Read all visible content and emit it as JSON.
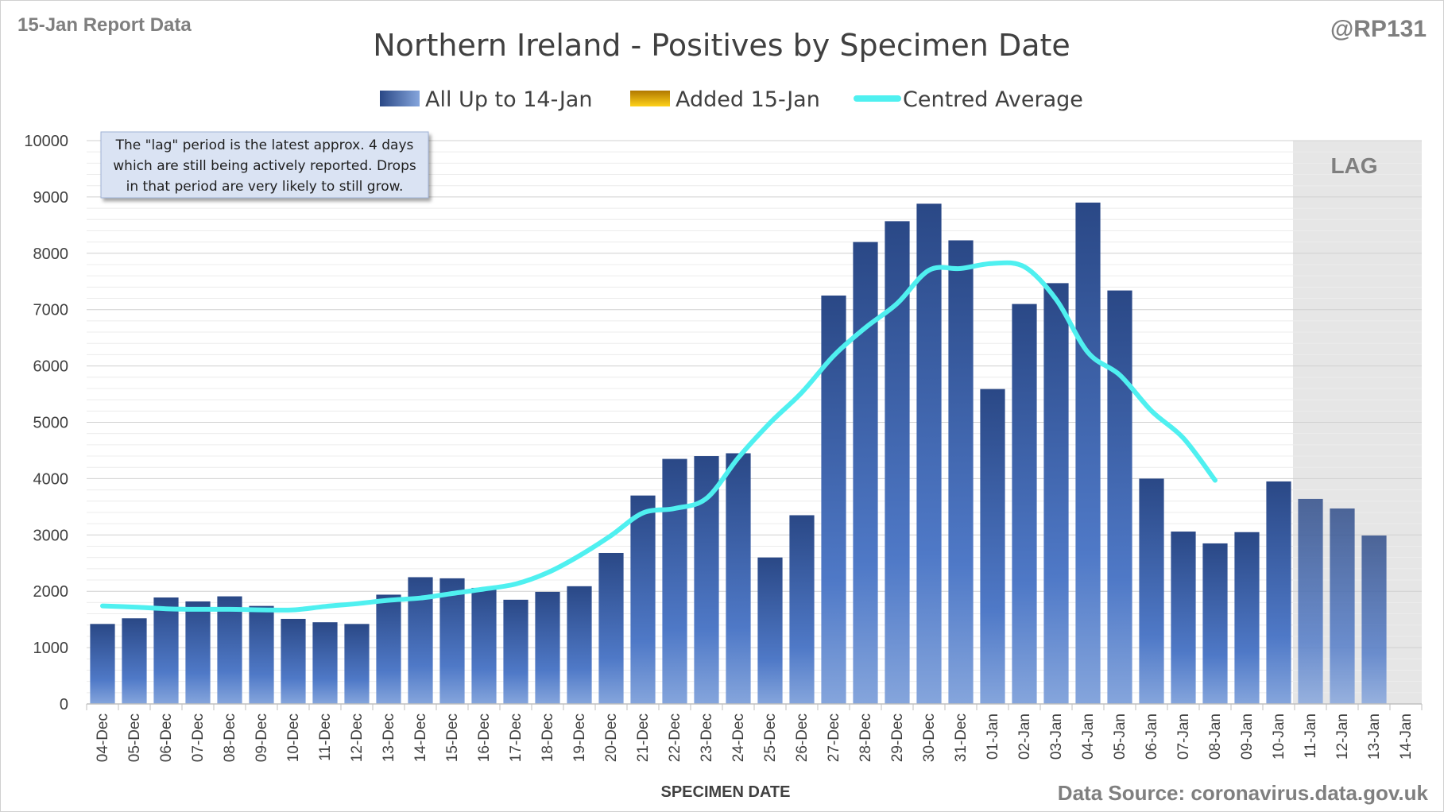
{
  "header": {
    "report_label": "15-Jan Report Data",
    "author": "@RP131",
    "source": "Data Source: coronavirus.data.gov.uk"
  },
  "note": {
    "lines": [
      "The \"lag\" period is the latest approx. 4 days",
      "which are still being actively reported.  Drops",
      "in that period are very likely to still grow."
    ]
  },
  "lag_label": "LAG",
  "colors": {
    "bar_dark": "#2a4886",
    "bar_light": "#7fa0d8",
    "avg_line": "#4ff0f0",
    "added": "#e6b800",
    "lag_shade": "#e6e6e6",
    "grid": "#d9d9d9"
  },
  "chart_data": {
    "type": "bar",
    "title": "Northern Ireland - Positives by Specimen Date",
    "xlabel": "SPECIMEN DATE",
    "ylabel": "",
    "ylim": [
      0,
      10000
    ],
    "yticks": [
      0,
      1000,
      2000,
      3000,
      4000,
      5000,
      6000,
      7000,
      8000,
      9000,
      10000
    ],
    "legend_position": "top-center",
    "grid": true,
    "lag_start": "11-Jan",
    "categories": [
      "04-Dec",
      "05-Dec",
      "06-Dec",
      "07-Dec",
      "08-Dec",
      "09-Dec",
      "10-Dec",
      "11-Dec",
      "12-Dec",
      "13-Dec",
      "14-Dec",
      "15-Dec",
      "16-Dec",
      "17-Dec",
      "18-Dec",
      "19-Dec",
      "20-Dec",
      "21-Dec",
      "22-Dec",
      "23-Dec",
      "24-Dec",
      "25-Dec",
      "26-Dec",
      "27-Dec",
      "28-Dec",
      "29-Dec",
      "30-Dec",
      "31-Dec",
      "01-Jan",
      "02-Jan",
      "03-Jan",
      "04-Jan",
      "05-Jan",
      "06-Jan",
      "07-Jan",
      "08-Jan",
      "09-Jan",
      "10-Jan",
      "11-Jan",
      "12-Jan",
      "13-Jan",
      "14-Jan"
    ],
    "series": [
      {
        "name": "All Up to 14-Jan",
        "type": "bar",
        "values": [
          1420,
          1520,
          1890,
          1820,
          1910,
          1740,
          1510,
          1450,
          1420,
          1940,
          2250,
          2230,
          2060,
          1850,
          1990,
          2090,
          2680,
          3700,
          4350,
          4400,
          4450,
          2600,
          3350,
          7250,
          8200,
          8570,
          8880,
          8230,
          5590,
          7100,
          7470,
          8900,
          7340,
          4000,
          3060,
          2850,
          3050,
          3950,
          3640,
          3470,
          2990,
          0
        ]
      },
      {
        "name": "Added 15-Jan",
        "type": "bar",
        "values": [
          0,
          0,
          0,
          0,
          0,
          0,
          0,
          0,
          0,
          0,
          0,
          0,
          0,
          0,
          0,
          0,
          0,
          0,
          0,
          0,
          0,
          0,
          0,
          0,
          0,
          0,
          0,
          0,
          0,
          0,
          0,
          0,
          0,
          0,
          0,
          0,
          0,
          0,
          0,
          0,
          0,
          0
        ]
      },
      {
        "name": "Centred Average",
        "type": "line",
        "values": [
          1740,
          1720,
          1690,
          1680,
          1680,
          1670,
          1670,
          1730,
          1780,
          1840,
          1880,
          1960,
          2040,
          2130,
          2330,
          2630,
          2990,
          3390,
          3470,
          3650,
          4370,
          4990,
          5530,
          6180,
          6680,
          7110,
          7700,
          7730,
          7820,
          7760,
          7180,
          6240,
          5840,
          5200,
          4720,
          3970,
          null,
          null,
          null,
          null,
          null,
          null
        ]
      }
    ]
  }
}
